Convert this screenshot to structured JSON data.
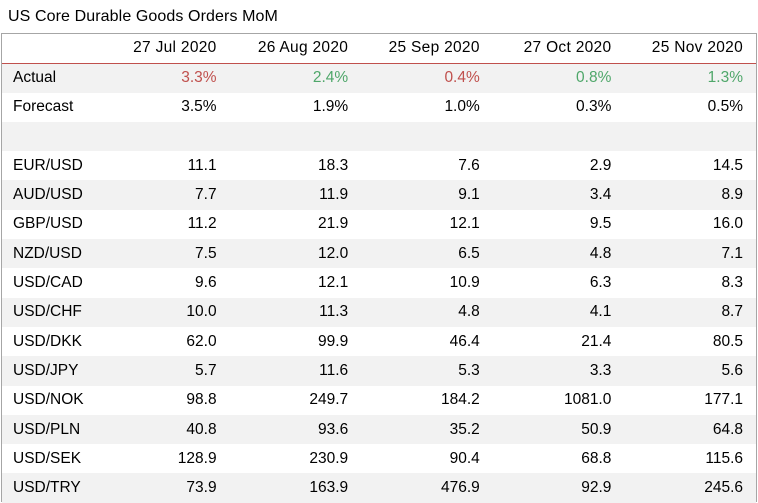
{
  "title": "US Core Durable Goods Orders MoM",
  "colors": {
    "negative": "#c0504d",
    "positive": "#4fa76a",
    "stripe": "#f2f2f2"
  },
  "columns": [
    "27 Jul 2020",
    "26 Aug 2020",
    "25 Sep 2020",
    "27 Oct 2020",
    "25 Nov 2020"
  ],
  "actual": {
    "label": "Actual",
    "values": [
      "3.3%",
      "2.4%",
      "0.4%",
      "0.8%",
      "1.3%"
    ],
    "status": [
      "negative",
      "positive",
      "negative",
      "positive",
      "positive"
    ]
  },
  "forecast": {
    "label": "Forecast",
    "values": [
      "3.5%",
      "1.9%",
      "1.0%",
      "0.3%",
      "0.5%"
    ]
  },
  "pairs": [
    {
      "label": "EUR/USD",
      "values": [
        "11.1",
        "18.3",
        "7.6",
        "2.9",
        "14.5"
      ]
    },
    {
      "label": "AUD/USD",
      "values": [
        "7.7",
        "11.9",
        "9.1",
        "3.4",
        "8.9"
      ]
    },
    {
      "label": "GBP/USD",
      "values": [
        "11.2",
        "21.9",
        "12.1",
        "9.5",
        "16.0"
      ]
    },
    {
      "label": "NZD/USD",
      "values": [
        "7.5",
        "12.0",
        "6.5",
        "4.8",
        "7.1"
      ]
    },
    {
      "label": "USD/CAD",
      "values": [
        "9.6",
        "12.1",
        "10.9",
        "6.3",
        "8.3"
      ]
    },
    {
      "label": "USD/CHF",
      "values": [
        "10.0",
        "11.3",
        "4.8",
        "4.1",
        "8.7"
      ]
    },
    {
      "label": "USD/DKK",
      "values": [
        "62.0",
        "99.9",
        "46.4",
        "21.4",
        "80.5"
      ]
    },
    {
      "label": "USD/JPY",
      "values": [
        "5.7",
        "11.6",
        "5.3",
        "3.3",
        "5.6"
      ]
    },
    {
      "label": "USD/NOK",
      "values": [
        "98.8",
        "249.7",
        "184.2",
        "1081.0",
        "177.1"
      ]
    },
    {
      "label": "USD/PLN",
      "values": [
        "40.8",
        "93.6",
        "35.2",
        "50.9",
        "64.8"
      ]
    },
    {
      "label": "USD/SEK",
      "values": [
        "128.9",
        "230.9",
        "90.4",
        "68.8",
        "115.6"
      ]
    },
    {
      "label": "USD/TRY",
      "values": [
        "73.9",
        "163.9",
        "476.9",
        "92.9",
        "245.6"
      ]
    }
  ]
}
